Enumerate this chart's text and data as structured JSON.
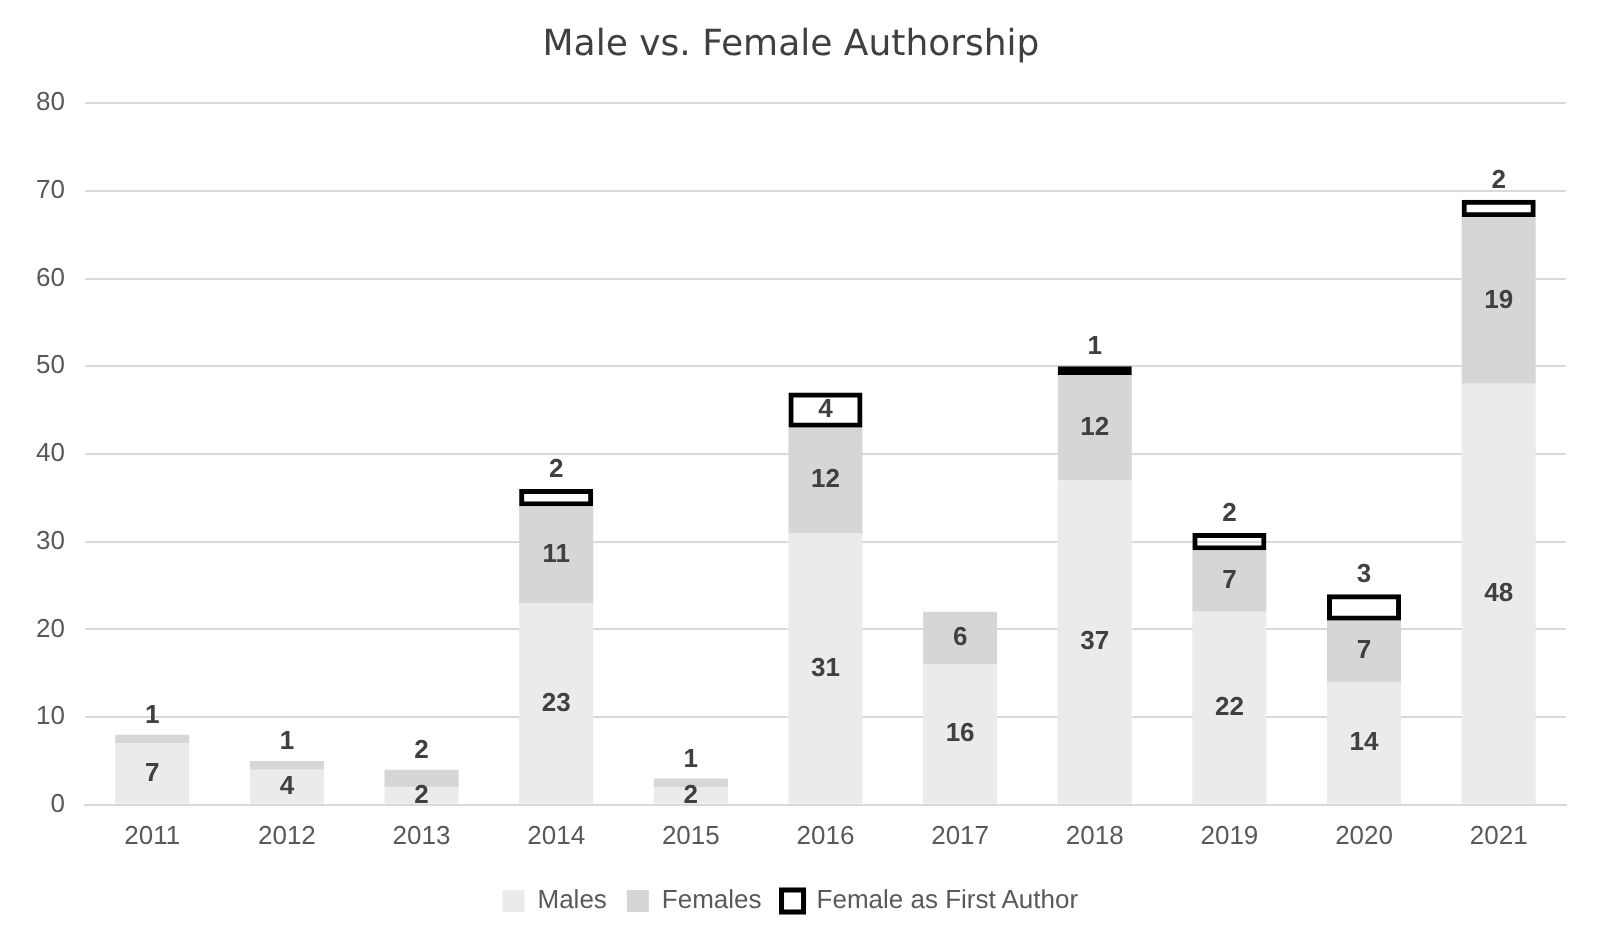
{
  "chart_data": {
    "type": "bar",
    "title": "Male vs. Female Authorship",
    "categories": [
      "2011",
      "2012",
      "2013",
      "2014",
      "2015",
      "2016",
      "2017",
      "2018",
      "2019",
      "2020",
      "2021"
    ],
    "series": [
      {
        "name": "Males",
        "color": "#ebebeb",
        "values": [
          7,
          4,
          2,
          23,
          2,
          31,
          16,
          37,
          22,
          14,
          48
        ]
      },
      {
        "name": "Females",
        "color": "#d6d6d6",
        "values": [
          1,
          1,
          2,
          11,
          1,
          12,
          6,
          12,
          7,
          7,
          19
        ]
      },
      {
        "name": "Female as First Author",
        "color": "#000000",
        "values": [
          null,
          null,
          null,
          2,
          null,
          4,
          null,
          1,
          2,
          3,
          2
        ]
      }
    ],
    "stacked": true,
    "ylim": [
      0,
      80
    ],
    "yticks": [
      0,
      10,
      20,
      30,
      40,
      50,
      60,
      70,
      80
    ],
    "grid": "y",
    "legend": "bottom",
    "data_labels": true
  }
}
